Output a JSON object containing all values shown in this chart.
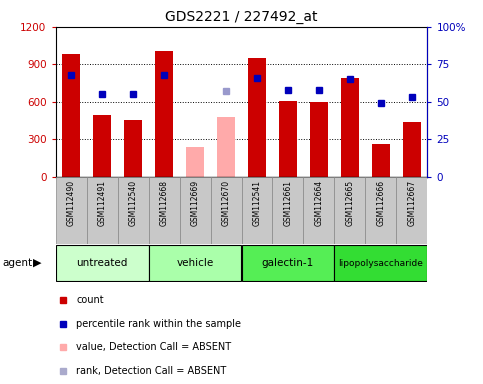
{
  "title": "GDS2221 / 227492_at",
  "samples": [
    "GSM112490",
    "GSM112491",
    "GSM112540",
    "GSM112668",
    "GSM112669",
    "GSM112670",
    "GSM112541",
    "GSM112661",
    "GSM112664",
    "GSM112665",
    "GSM112666",
    "GSM112667"
  ],
  "bar_values": [
    980,
    490,
    450,
    1010,
    240,
    480,
    950,
    610,
    595,
    790,
    265,
    440
  ],
  "bar_colors": [
    "#cc0000",
    "#cc0000",
    "#cc0000",
    "#cc0000",
    "#ffaaaa",
    "#ffaaaa",
    "#cc0000",
    "#cc0000",
    "#cc0000",
    "#cc0000",
    "#cc0000",
    "#cc0000"
  ],
  "dot_pct": [
    68,
    55,
    55,
    68,
    null,
    57,
    66,
    58,
    58,
    65,
    49,
    53
  ],
  "dot_absent": [
    false,
    false,
    false,
    false,
    true,
    true,
    false,
    false,
    false,
    false,
    false,
    false
  ],
  "dot_show": [
    true,
    true,
    true,
    true,
    false,
    true,
    true,
    true,
    true,
    true,
    true,
    true
  ],
  "groups": [
    {
      "label": "untreated",
      "start": 0,
      "end": 3,
      "color": "#ccffcc"
    },
    {
      "label": "vehicle",
      "start": 3,
      "end": 6,
      "color": "#aaffaa"
    },
    {
      "label": "galectin-1",
      "start": 6,
      "end": 9,
      "color": "#55ee55"
    },
    {
      "label": "lipopolysaccharide",
      "start": 9,
      "end": 12,
      "color": "#33dd33"
    }
  ],
  "ylim_left": [
    0,
    1200
  ],
  "ylim_right": [
    0,
    100
  ],
  "yticks_left": [
    0,
    300,
    600,
    900,
    1200
  ],
  "right_tick_labels": [
    "0",
    "25",
    "50",
    "75",
    "100%"
  ],
  "bar_width": 0.6,
  "left_color": "#cc0000",
  "right_color": "#0000bb",
  "dot_color_normal": "#0000bb",
  "dot_color_absent": "#9999cc",
  "sample_row_bg": "#c8c8c8",
  "plot_bg": "#ffffff",
  "legend_items": [
    {
      "color": "#cc0000",
      "label": "count"
    },
    {
      "color": "#0000bb",
      "label": "percentile rank within the sample"
    },
    {
      "color": "#ffaaaa",
      "label": "value, Detection Call = ABSENT"
    },
    {
      "color": "#aaaacc",
      "label": "rank, Detection Call = ABSENT"
    }
  ]
}
